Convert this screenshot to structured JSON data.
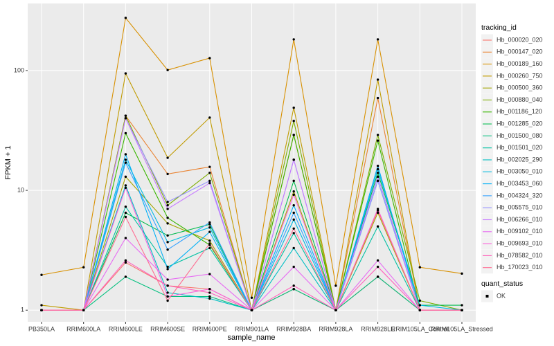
{
  "chart_data": {
    "type": "line",
    "x_label": "sample_name",
    "y_label": "FPKM + 1",
    "categories": [
      "PB350LA",
      "RRIM600LA",
      "RRIM600LE",
      "RRIM600SE",
      "RRIM600PE",
      "RRIM901LA",
      "RRIM928BA",
      "RRIM928LA",
      "RRIM928LE",
      "RRIM105LA_Control",
      "RRIM105LA_Stressed"
    ],
    "log_y": true,
    "ylim": [
      0.8,
      363
    ],
    "yticks": [
      1,
      10,
      100
    ],
    "grid": true,
    "legend_title": "tracking_id",
    "legend_position": "right",
    "point_color": "#000000",
    "shape_legend": {
      "title": "quant_status",
      "labels": [
        "OK"
      ]
    },
    "series": [
      {
        "name": "Hb_000020_020",
        "color": "#F8766D",
        "values": [
          1,
          1,
          2.5,
          1.6,
          1.5,
          1,
          1.5,
          1,
          1.9,
          1,
          1
        ]
      },
      {
        "name": "Hb_000147_020",
        "color": "#EA8331",
        "values": [
          1,
          1,
          42,
          13.7,
          15.7,
          1,
          29,
          1,
          59,
          1,
          1
        ]
      },
      {
        "name": "Hb_000189_160",
        "color": "#D89000",
        "values": [
          1.97,
          2.28,
          275,
          101,
          127,
          1.27,
          182,
          1.6,
          182,
          2.28,
          2.02
        ]
      },
      {
        "name": "Hb_000260_750",
        "color": "#C09B00",
        "values": [
          1.1,
          1,
          94.6,
          18.7,
          40.5,
          1,
          48.9,
          1,
          84,
          1,
          1
        ]
      },
      {
        "name": "Hb_000500_360",
        "color": "#A3A500",
        "values": [
          1,
          1,
          13,
          5.3,
          3.8,
          1,
          9.8,
          1,
          6.5,
          1,
          1
        ]
      },
      {
        "name": "Hb_000880_040",
        "color": "#7CAE00",
        "values": [
          1,
          1,
          42,
          7.5,
          14,
          1,
          38,
          1,
          29,
          1.2,
          1
        ]
      },
      {
        "name": "Hb_001186_120",
        "color": "#39B600",
        "values": [
          1,
          1,
          30,
          5.9,
          3.5,
          1,
          29,
          1,
          26,
          1,
          1
        ]
      },
      {
        "name": "Hb_001285_020",
        "color": "#00BB4E",
        "values": [
          1,
          1,
          6.5,
          4.2,
          5.2,
          1,
          12,
          1,
          14,
          1.1,
          1.1
        ]
      },
      {
        "name": "Hb_001500_080",
        "color": "#00BF7D",
        "values": [
          1,
          1,
          1.9,
          1.3,
          1.3,
          1,
          1.5,
          1,
          1.9,
          1,
          1
        ]
      },
      {
        "name": "Hb_001501_020",
        "color": "#00C1A3",
        "values": [
          1,
          1,
          7.3,
          2.3,
          3.3,
          1,
          4.4,
          1,
          5,
          1,
          1
        ]
      },
      {
        "name": "Hb_002025_290",
        "color": "#00BFC4",
        "values": [
          1,
          1,
          11,
          1.4,
          1.25,
          1,
          3.3,
          1,
          12,
          1,
          1
        ]
      },
      {
        "name": "Hb_003050_010",
        "color": "#00BAE0",
        "values": [
          1,
          1,
          18,
          3.7,
          4.9,
          1,
          5.7,
          1,
          15,
          1.1,
          1
        ]
      },
      {
        "name": "Hb_003453_060",
        "color": "#00B0F6",
        "values": [
          1,
          1,
          20,
          2.2,
          4.5,
          1,
          7.5,
          1,
          16,
          1,
          1
        ]
      },
      {
        "name": "Hb_004324_320",
        "color": "#35A2FF",
        "values": [
          1,
          1,
          17,
          3.2,
          5.4,
          1,
          6.5,
          1,
          13,
          1,
          1
        ]
      },
      {
        "name": "Hb_005575_010",
        "color": "#9590FF",
        "values": [
          1,
          1,
          40,
          8,
          12,
          1,
          18,
          1,
          12,
          1,
          1
        ]
      },
      {
        "name": "Hb_006266_010",
        "color": "#C77CFF",
        "values": [
          1,
          1,
          40,
          7,
          11.5,
          1,
          18,
          1,
          13,
          1,
          1
        ]
      },
      {
        "name": "Hb_009102_010",
        "color": "#E76BF3",
        "values": [
          1,
          1,
          4,
          1.8,
          2,
          1,
          2.3,
          1,
          2.6,
          1,
          1
        ]
      },
      {
        "name": "Hb_009693_010",
        "color": "#FA62DB",
        "values": [
          1,
          1,
          10.5,
          1.3,
          1.5,
          1,
          9.2,
          1,
          7,
          1,
          1
        ]
      },
      {
        "name": "Hb_078582_010",
        "color": "#FF62BC",
        "values": [
          1,
          1,
          2.6,
          1.6,
          1.4,
          1,
          1.6,
          1,
          2.3,
          1,
          1
        ]
      },
      {
        "name": "Hb_170023_010",
        "color": "#FF6C91",
        "values": [
          1,
          1,
          6,
          1.2,
          3.6,
          1,
          4.8,
          1,
          6.8,
          1,
          1
        ]
      }
    ]
  }
}
